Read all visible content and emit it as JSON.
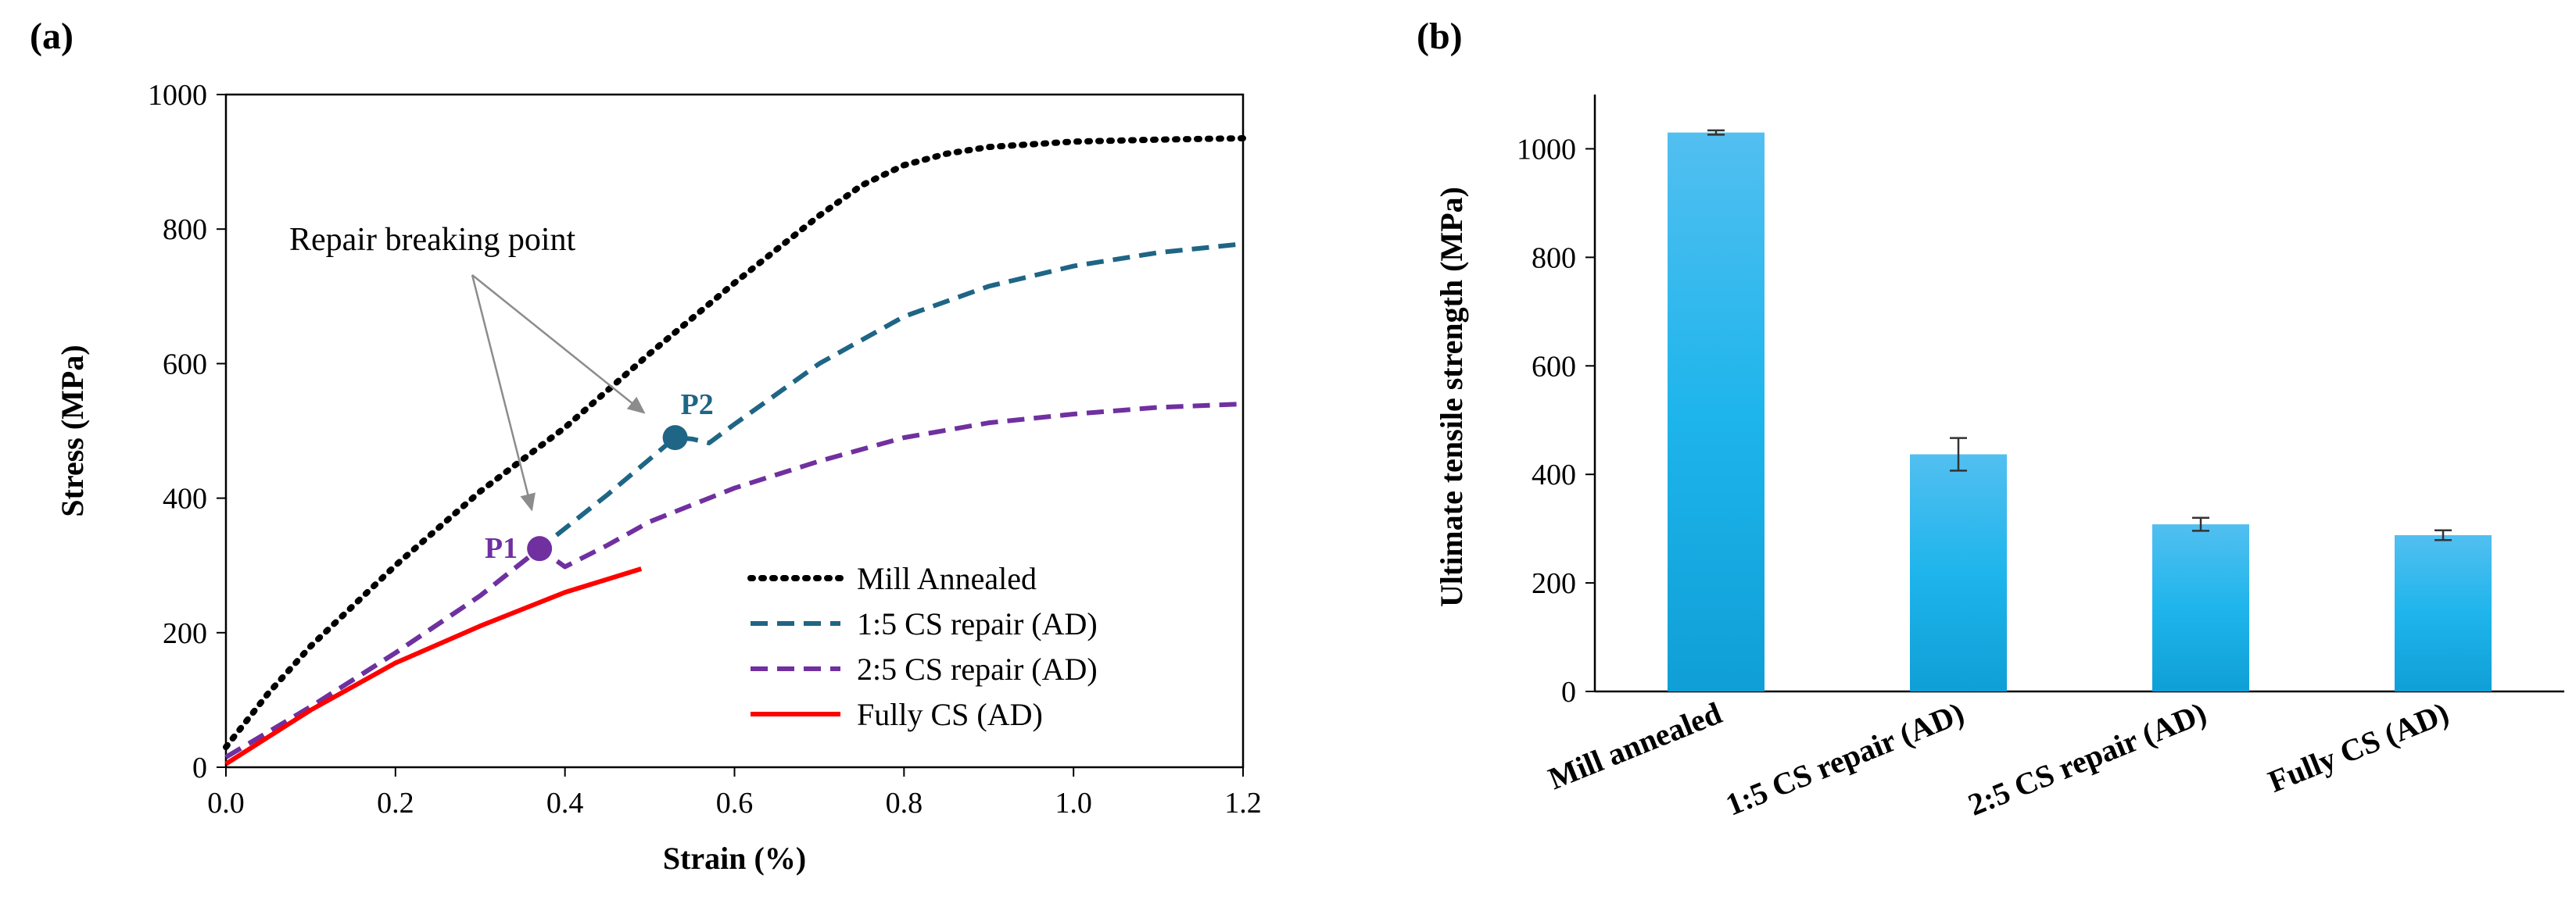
{
  "panel_a_label": "(a)",
  "panel_b_label": "(b)",
  "chart_data": [
    {
      "type": "line",
      "title": "",
      "xlabel": "Strain (%)",
      "ylabel": "Stress (MPa)",
      "xlim": [
        0,
        1.2
      ],
      "ylim": [
        0,
        1000
      ],
      "xticks": [
        "0.0",
        "0.2",
        "0.4",
        "0.6",
        "0.8",
        "1.0",
        "1.2"
      ],
      "yticks": [
        "0",
        "200",
        "400",
        "600",
        "800",
        "1000"
      ],
      "legend_position": "bottom-right",
      "series": [
        {
          "name": "Mill Annealed",
          "color": "#000000",
          "style": "dotted",
          "x": [
            0,
            0.05,
            0.1,
            0.2,
            0.3,
            0.4,
            0.5,
            0.6,
            0.7,
            0.75,
            0.8,
            0.85,
            0.9,
            1.0,
            1.1,
            1.2
          ],
          "y": [
            30,
            110,
            180,
            300,
            410,
            505,
            615,
            720,
            820,
            865,
            895,
            912,
            922,
            930,
            933,
            935
          ]
        },
        {
          "name": "1:5 CS repair (AD)",
          "color": "#1f6585",
          "style": "dashed",
          "x": [
            0,
            0.1,
            0.2,
            0.3,
            0.37,
            0.45,
            0.53,
            0.55,
            0.57,
            0.6,
            0.7,
            0.8,
            0.9,
            1.0,
            1.1,
            1.2
          ],
          "y": [
            15,
            90,
            170,
            255,
            325,
            405,
            490,
            488,
            482,
            510,
            600,
            670,
            715,
            745,
            765,
            778
          ]
        },
        {
          "name": "2:5 CS repair (AD)",
          "color": "#7030a0",
          "style": "dashed",
          "x": [
            0,
            0.1,
            0.2,
            0.3,
            0.37,
            0.4,
            0.45,
            0.5,
            0.6,
            0.7,
            0.8,
            0.9,
            1.0,
            1.1,
            1.2
          ],
          "y": [
            15,
            90,
            170,
            255,
            325,
            298,
            330,
            365,
            415,
            455,
            490,
            512,
            525,
            535,
            540
          ]
        },
        {
          "name": "Fully CS (AD)",
          "color": "#ff0000",
          "style": "solid",
          "x": [
            0,
            0.1,
            0.2,
            0.3,
            0.4,
            0.49
          ],
          "y": [
            5,
            85,
            155,
            210,
            260,
            295
          ]
        }
      ],
      "points": [
        {
          "label": "P1",
          "x": 0.37,
          "y": 325,
          "color": "#7030a0"
        },
        {
          "label": "P2",
          "x": 0.53,
          "y": 490,
          "color": "#1f6585"
        }
      ],
      "annotation": {
        "text": "Repair breaking point",
        "targets": [
          "P1",
          "P2"
        ]
      }
    },
    {
      "type": "bar",
      "title": "",
      "xlabel": "",
      "ylabel": "Ultimate tensile strength (MPa)",
      "ylim": [
        0,
        1100
      ],
      "yticks": [
        "0",
        "200",
        "400",
        "600",
        "800",
        "1000"
      ],
      "bar_color": "#1fb4ea",
      "categories": [
        "Mill annealed",
        "1:5 CS repair (AD)",
        "2:5 CS repair (AD)",
        "Fully CS (AD)"
      ],
      "values": [
        1030,
        437,
        308,
        288
      ],
      "errors": [
        4,
        30,
        12,
        9
      ]
    }
  ]
}
